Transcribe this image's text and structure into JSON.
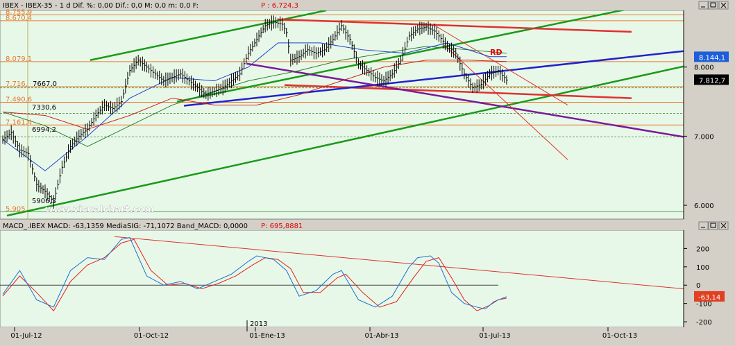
{
  "price_panel": {
    "header": "IBEX - IBEX-35 -  1 d Dif. %: 0,00 Dif.: 0,0 M: 0,0 m: 0,0 F:",
    "p_label": "P : 6.724,3"
  },
  "macd_panel": {
    "header": "MACD_.IBEX MACD: -63,1359 MediaSIG: -71,1072 Band_MACD: 0,0000",
    "p_label": "P: 695,8881"
  },
  "watermark": "www.visualchart.com",
  "annotation_rd": "RD",
  "year_marker": "2013",
  "colors": {
    "background": "#e8f8e8",
    "price_bars": "#000000",
    "ma_blue": "#1f3fcf",
    "ma_red": "#d02020",
    "ma_green": "#2f7f2f",
    "channel_green": "#1a9a1a",
    "trend_red": "#e03030",
    "trend_blue": "#2222cc",
    "trend_purple": "#7a1a9a",
    "fib_orange": "#e87830",
    "macd": "#1e6fd0",
    "signal": "#e02020"
  },
  "chart_data": [
    {
      "type": "line",
      "title": "IBEX-35 daily",
      "x_ticks": [
        "01-Jul-12",
        "01-Oct-12",
        "01-Ene-13",
        "01-Abr-13",
        "01-Jul-13",
        "01-Oct-13"
      ],
      "y_ticks": [
        6000,
        7000,
        8000
      ],
      "y_tick_labels": [
        "6.000",
        "7.000",
        "8.000"
      ],
      "ylim": [
        5800,
        8820
      ],
      "fib_levels": [
        {
          "value": 8755.9,
          "label": "8.755,9"
        },
        {
          "value": 8670.4,
          "label": "8.670,4"
        },
        {
          "value": 8079.1,
          "label": "8.079,1"
        },
        {
          "value": 7716.0,
          "label": "7.716,"
        },
        {
          "value": 7490.6,
          "label": "7.490,6"
        },
        {
          "value": 7161.4,
          "label": "7.161,4"
        },
        {
          "value": 5905.0,
          "label": "5.905,"
        }
      ],
      "point_labels": [
        {
          "value": 7667.0,
          "label": "7667,0"
        },
        {
          "value": 7330.6,
          "label": "7330,6"
        },
        {
          "value": 6994.2,
          "label": "6994,2"
        },
        {
          "value": 5906.3,
          "label": "5906,3"
        }
      ],
      "price_tags": [
        {
          "value": 8144.1,
          "label": "8.144,1"
        },
        {
          "value": 7812.7,
          "label": "7.812,7"
        }
      ],
      "series": [
        {
          "name": "IBEX-35",
          "points": [
            [
              0,
              6950
            ],
            [
              4,
              7050
            ],
            [
              8,
              6800
            ],
            [
              12,
              6750
            ],
            [
              16,
              6300
            ],
            [
              20,
              6200
            ],
            [
              24,
              6050
            ],
            [
              28,
              6550
            ],
            [
              32,
              6850
            ],
            [
              36,
              7000
            ],
            [
              40,
              7100
            ],
            [
              44,
              7300
            ],
            [
              48,
              7450
            ],
            [
              52,
              7400
            ],
            [
              56,
              7500
            ],
            [
              60,
              7950
            ],
            [
              64,
              8100
            ],
            [
              68,
              8000
            ],
            [
              72,
              7900
            ],
            [
              76,
              7800
            ],
            [
              80,
              7850
            ],
            [
              84,
              7900
            ],
            [
              88,
              7800
            ],
            [
              92,
              7700
            ],
            [
              96,
              7600
            ],
            [
              100,
              7650
            ],
            [
              104,
              7700
            ],
            [
              108,
              7800
            ],
            [
              112,
              7900
            ],
            [
              116,
              8200
            ],
            [
              120,
              8400
            ],
            [
              124,
              8600
            ],
            [
              128,
              8650
            ],
            [
              132,
              8620
            ],
            [
              134,
              8500
            ],
            [
              136,
              8100
            ],
            [
              140,
              8150
            ],
            [
              144,
              8250
            ],
            [
              148,
              8200
            ],
            [
              152,
              8250
            ],
            [
              156,
              8400
            ],
            [
              160,
              8600
            ],
            [
              164,
              8400
            ],
            [
              168,
              8050
            ],
            [
              172,
              7950
            ],
            [
              176,
              7850
            ],
            [
              180,
              7800
            ],
            [
              184,
              7900
            ],
            [
              188,
              8100
            ],
            [
              192,
              8450
            ],
            [
              196,
              8550
            ],
            [
              200,
              8580
            ],
            [
              204,
              8520
            ],
            [
              206,
              8450
            ],
            [
              210,
              8300
            ],
            [
              214,
              8200
            ],
            [
              218,
              7900
            ],
            [
              222,
              7700
            ],
            [
              226,
              7750
            ],
            [
              230,
              7900
            ],
            [
              234,
              7950
            ],
            [
              238,
              7812.7
            ]
          ]
        },
        {
          "name": "MA blue",
          "points": [
            [
              0,
              6950
            ],
            [
              20,
              6500
            ],
            [
              40,
              7000
            ],
            [
              60,
              7550
            ],
            [
              80,
              7850
            ],
            [
              100,
              7800
            ],
            [
              116,
              8000
            ],
            [
              130,
              8350
            ],
            [
              150,
              8350
            ],
            [
              170,
              8250
            ],
            [
              190,
              8200
            ],
            [
              210,
              8350
            ],
            [
              230,
              8150
            ],
            [
              238,
              8150
            ]
          ]
        },
        {
          "name": "MA red",
          "points": [
            [
              0,
              7350
            ],
            [
              20,
              7300
            ],
            [
              40,
              7100
            ],
            [
              60,
              7300
            ],
            [
              80,
              7550
            ],
            [
              100,
              7450
            ],
            [
              120,
              7450
            ],
            [
              140,
              7600
            ],
            [
              160,
              7800
            ],
            [
              180,
              8000
            ],
            [
              200,
              8100
            ],
            [
              220,
              8100
            ],
            [
              238,
              8080
            ]
          ]
        },
        {
          "name": "MA green",
          "points": [
            [
              0,
              7350
            ],
            [
              20,
              7150
            ],
            [
              40,
              6850
            ],
            [
              60,
              7150
            ],
            [
              80,
              7450
            ],
            [
              100,
              7650
            ],
            [
              116,
              7800
            ],
            [
              140,
              7950
            ],
            [
              160,
              8100
            ],
            [
              180,
              8200
            ],
            [
              200,
              8300
            ],
            [
              220,
              8250
            ],
            [
              238,
              8200
            ]
          ]
        }
      ]
    },
    {
      "type": "line",
      "title": "MACD",
      "y_ticks": [
        200,
        100,
        0,
        -100,
        -200
      ],
      "y_tick_labels": [
        "200",
        "100",
        "0",
        "-100",
        "-200"
      ],
      "ylim": [
        -230,
        300
      ],
      "price_tag": {
        "value": -63.14,
        "label": "-63,14"
      },
      "series": [
        {
          "name": "MACD",
          "points": [
            [
              0,
              -50
            ],
            [
              8,
              80
            ],
            [
              16,
              -80
            ],
            [
              24,
              -120
            ],
            [
              32,
              80
            ],
            [
              40,
              150
            ],
            [
              48,
              140
            ],
            [
              56,
              250
            ],
            [
              60,
              260
            ],
            [
              68,
              50
            ],
            [
              76,
              0
            ],
            [
              84,
              20
            ],
            [
              92,
              -20
            ],
            [
              100,
              20
            ],
            [
              108,
              60
            ],
            [
              116,
              130
            ],
            [
              120,
              160
            ],
            [
              128,
              140
            ],
            [
              134,
              80
            ],
            [
              140,
              -60
            ],
            [
              148,
              -30
            ],
            [
              156,
              60
            ],
            [
              160,
              80
            ],
            [
              168,
              -80
            ],
            [
              176,
              -120
            ],
            [
              184,
              -60
            ],
            [
              192,
              100
            ],
            [
              196,
              150
            ],
            [
              202,
              160
            ],
            [
              206,
              120
            ],
            [
              212,
              -40
            ],
            [
              218,
              -100
            ],
            [
              224,
              -120
            ],
            [
              228,
              -130
            ],
            [
              232,
              -90
            ],
            [
              238,
              -63
            ]
          ]
        },
        {
          "name": "MediaSIG",
          "points": [
            [
              0,
              -60
            ],
            [
              8,
              50
            ],
            [
              16,
              -40
            ],
            [
              24,
              -140
            ],
            [
              32,
              20
            ],
            [
              40,
              110
            ],
            [
              48,
              150
            ],
            [
              56,
              230
            ],
            [
              62,
              250
            ],
            [
              70,
              80
            ],
            [
              78,
              0
            ],
            [
              86,
              10
            ],
            [
              94,
              -20
            ],
            [
              102,
              10
            ],
            [
              110,
              50
            ],
            [
              118,
              110
            ],
            [
              124,
              150
            ],
            [
              130,
              140
            ],
            [
              136,
              90
            ],
            [
              142,
              -40
            ],
            [
              150,
              -40
            ],
            [
              158,
              40
            ],
            [
              162,
              60
            ],
            [
              170,
              -40
            ],
            [
              178,
              -120
            ],
            [
              186,
              -90
            ],
            [
              194,
              40
            ],
            [
              200,
              130
            ],
            [
              206,
              150
            ],
            [
              212,
              40
            ],
            [
              218,
              -80
            ],
            [
              224,
              -140
            ],
            [
              230,
              -110
            ],
            [
              234,
              -80
            ],
            [
              238,
              -71
            ]
          ]
        }
      ]
    }
  ]
}
